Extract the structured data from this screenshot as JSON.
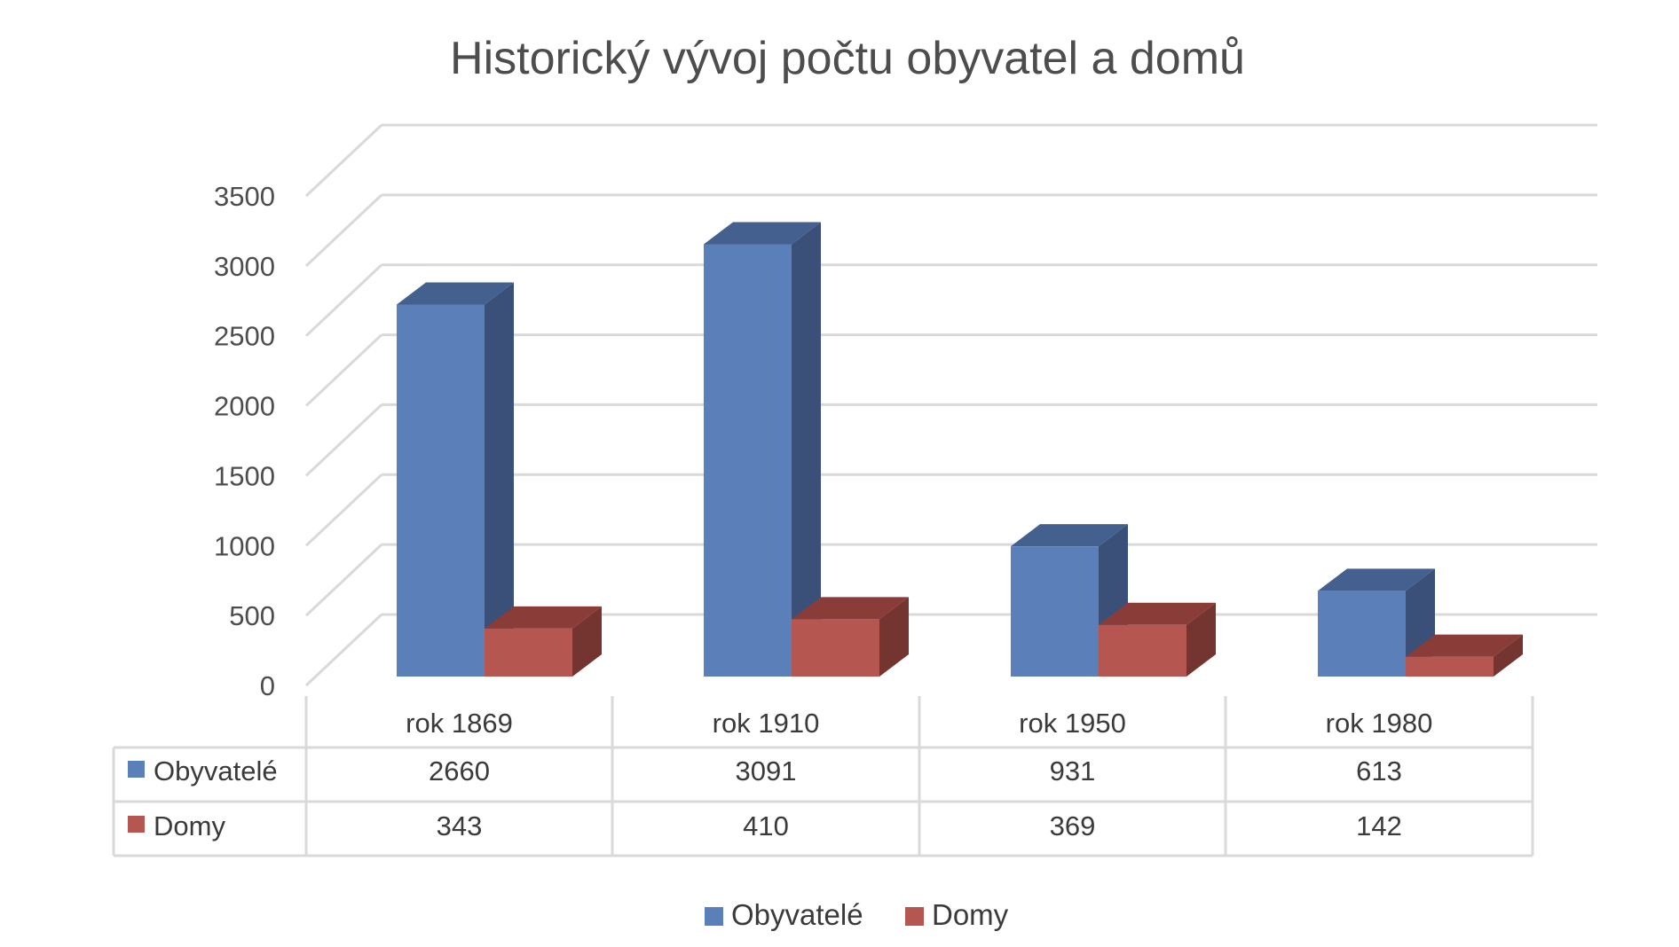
{
  "chart_data": {
    "type": "bar",
    "title": "Historický vývoj počtu obyvatel a domů",
    "categories": [
      "rok 1869",
      "rok 1910",
      "rok 1950",
      "rok 1980"
    ],
    "series": [
      {
        "name": "Obyvatelé",
        "values": [
          2660,
          3091,
          931,
          613
        ],
        "color": "#5b80b9",
        "side_color": "#3a5079",
        "top_color": "#44608f"
      },
      {
        "name": "Domy",
        "values": [
          343,
          410,
          369,
          142
        ],
        "color": "#b55750",
        "side_color": "#743531",
        "top_color": "#8a3c38"
      }
    ],
    "yticks": [
      0,
      500,
      1000,
      1500,
      2000,
      2500,
      3000,
      3500
    ],
    "ylim": [
      0,
      3500
    ],
    "grid": true,
    "legend": "bottom",
    "data_table": true,
    "style": "3d-clustered-column"
  }
}
